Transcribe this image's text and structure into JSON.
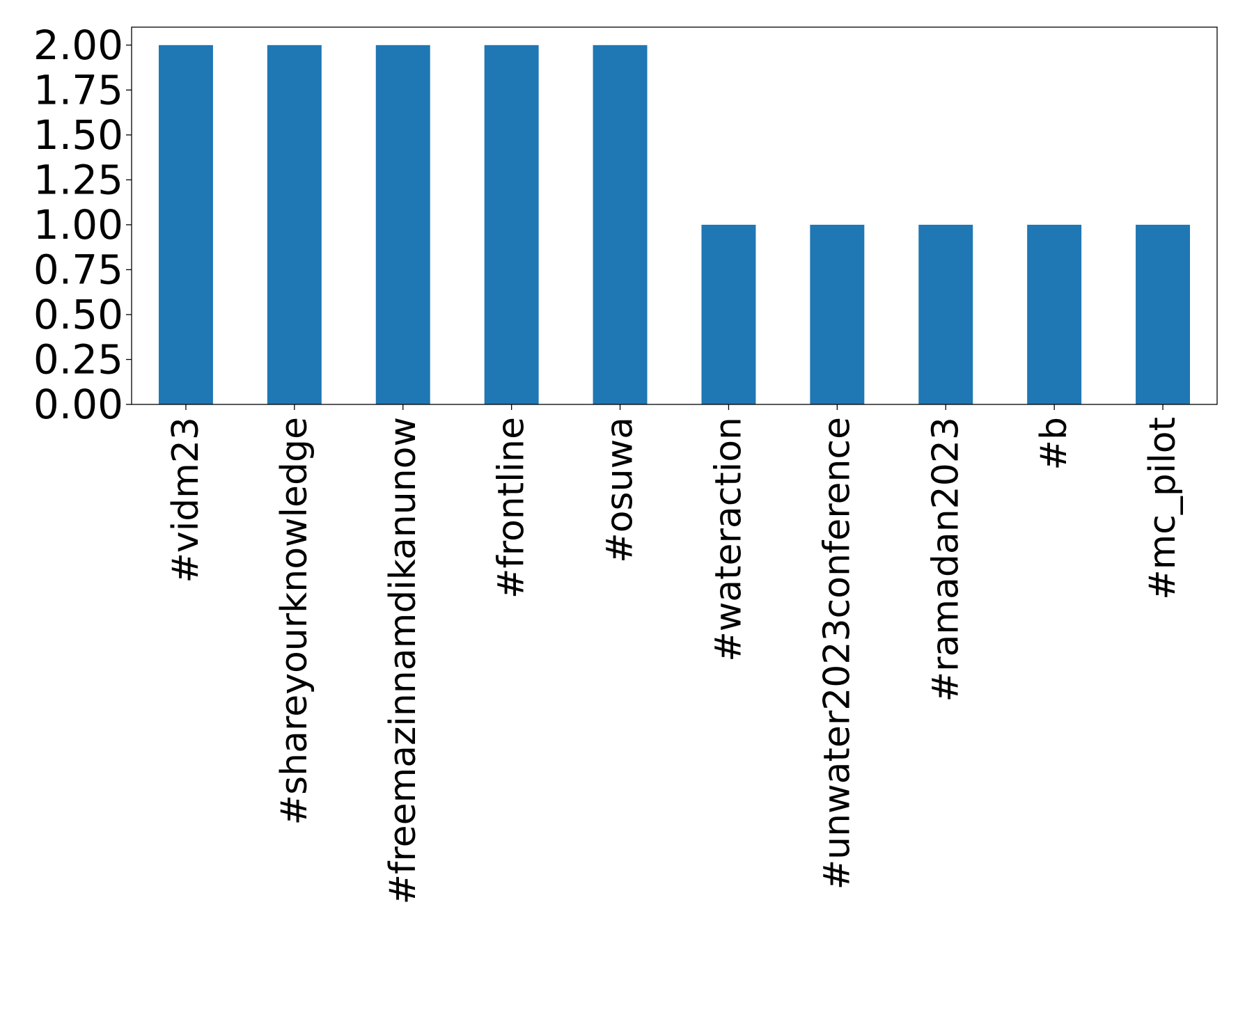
{
  "chart_data": {
    "type": "bar",
    "title": "",
    "xlabel": "",
    "ylabel": "",
    "categories": [
      "#vidm23",
      "#shareyourknowledge",
      "#freemazinnamdikanunow",
      "#frontline",
      "#osuwa",
      "#wateraction",
      "#unwater2023conference",
      "#ramadan2023",
      "#b",
      "#mc_pilot"
    ],
    "values": [
      2,
      2,
      2,
      2,
      2,
      1,
      1,
      1,
      1,
      1
    ],
    "ylim": [
      0,
      2.1
    ],
    "yticks": [
      "0.00",
      "0.25",
      "0.50",
      "0.75",
      "1.00",
      "1.25",
      "1.50",
      "1.75",
      "2.00"
    ],
    "bar_color": "#1f77b4",
    "grid": false,
    "legend": "none"
  }
}
